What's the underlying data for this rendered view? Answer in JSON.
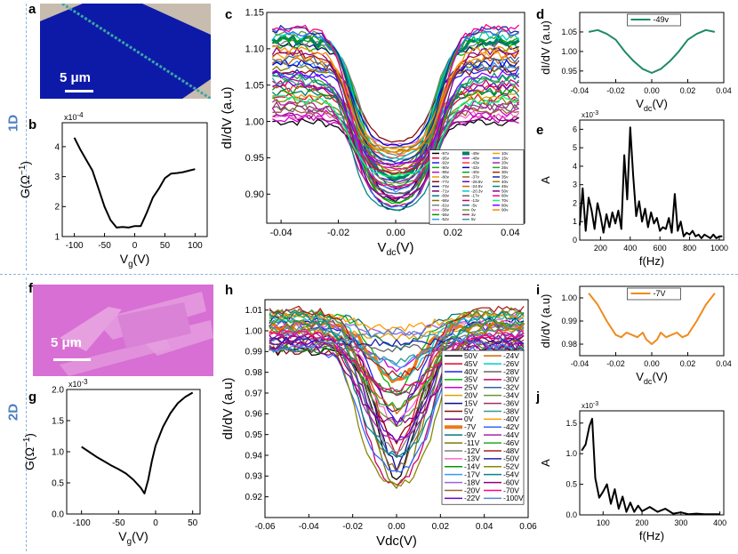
{
  "row_labels": {
    "row1": "1D",
    "row2": "2D"
  },
  "panel_labels": {
    "a": "a",
    "b": "b",
    "c": "c",
    "d": "d",
    "e": "e",
    "f": "f",
    "g": "g",
    "h": "h",
    "i": "i",
    "j": "j"
  },
  "images": {
    "a": {
      "scale_label": "5 μm",
      "bg_color": "#0d1aa8",
      "stripe_color": "#c7bcae"
    },
    "f": {
      "scale_label": "5 μm",
      "bg_color": "#d86fd4"
    }
  },
  "chart_data": [
    {
      "panel": "b",
      "type": "line",
      "xlabel": "V",
      "xlabel_sub": "g",
      "xlabel_unit": "(V)",
      "ylabel": "G(Ω",
      "ylabel_sup": "−1",
      "ylabel_close": ")",
      "exponent": "x10",
      "exponent_sup": "-4",
      "xlim": [
        -120,
        120
      ],
      "ylim": [
        1,
        4.8
      ],
      "xticks": [
        "-100",
        "-50",
        "0",
        "50",
        "100"
      ],
      "xtick_values": [
        -100,
        -50,
        0,
        50,
        100
      ],
      "yticks": [
        "1",
        "2",
        "3",
        "4"
      ],
      "ytick_values": [
        1,
        2,
        3,
        4
      ],
      "color": "#000000",
      "x": [
        -100,
        -90,
        -80,
        -70,
        -60,
        -50,
        -40,
        -30,
        -20,
        -10,
        0,
        10,
        20,
        30,
        40,
        50,
        60,
        70,
        80,
        90,
        100
      ],
      "y": [
        4.3,
        3.9,
        3.55,
        3.2,
        2.6,
        2.0,
        1.55,
        1.3,
        1.32,
        1.3,
        1.35,
        1.35,
        1.8,
        2.3,
        2.6,
        2.95,
        3.1,
        3.12,
        3.15,
        3.2,
        3.25
      ]
    },
    {
      "panel": "c",
      "type": "line",
      "xlabel": "V",
      "xlabel_sub": "dc",
      "xlabel_unit": "(V)",
      "ylabel": "dI/dV (a.u)",
      "xlim": [
        -0.045,
        0.045
      ],
      "ylim": [
        0.86,
        1.15
      ],
      "xticks": [
        "-0.04",
        "-0.02",
        "0.00",
        "0.02",
        "0.04"
      ],
      "xtick_values": [
        -0.04,
        -0.02,
        0,
        0.02,
        0.04
      ],
      "yticks": [
        "0.90",
        "0.95",
        "1.00",
        "1.05",
        "1.10",
        "1.15"
      ],
      "ytick_values": [
        0.9,
        0.95,
        1.0,
        1.05,
        1.1,
        1.15
      ],
      "legend_position": "bottom-right",
      "legend": [
        "-97v",
        "-95v",
        "-92v",
        "-90v",
        "-85v",
        "-80v",
        "-77v",
        "-74v",
        "-71v",
        "-69v",
        "-66v",
        "-61v",
        "-58v",
        "-55v",
        "-52v",
        "-49v",
        "-48v",
        "-43v",
        "-42v",
        "-40v",
        "-37v",
        "-28.8v",
        "-24.8v",
        "-20.3v",
        "-17v",
        "-13v",
        "-5v",
        "0v",
        "3v",
        "5v",
        "10v",
        "15v",
        "20v",
        "25v",
        "30v",
        "35v",
        "40v",
        "45v",
        "50v",
        "60v",
        "70v",
        "80v",
        "90v"
      ],
      "legend_colors": [
        "#000000",
        "#e8002a",
        "#1f1ff2",
        "#00b300",
        "#cc00cc",
        "#e0a000",
        "#8c0a0a",
        "#111177",
        "#7a0070",
        "#007a7a",
        "#7a7a00",
        "#808080",
        "#ff66cc",
        "#009900",
        "#3399ff",
        "#008060",
        "#cc00cc",
        "#ff3333",
        "#0000cc",
        "#00aa00",
        "#996633",
        "#6600cc",
        "#cc6600",
        "#00cccc",
        "#666666",
        "#cc0066",
        "#336699",
        "#669933",
        "#993366",
        "#339999",
        "#ff9900",
        "#3366ff",
        "#aa22aa",
        "#22aa22",
        "#aa2222",
        "#2222aa",
        "#888800",
        "#008888",
        "#880088",
        "#ff0088",
        "#00ff88",
        "#8800ff",
        "#ff8800"
      ],
      "bold_series": "-49v",
      "center_min": 0.875,
      "center_max": 0.97,
      "edge_min": 1.0,
      "edge_max": 1.13
    },
    {
      "panel": "d",
      "type": "line",
      "xlabel": "V",
      "xlabel_sub": "dc",
      "xlabel_unit": "(V)",
      "ylabel": "dI/dV (a.u)",
      "xlim": [
        -0.04,
        0.04
      ],
      "ylim": [
        0.92,
        1.1
      ],
      "xticks": [
        "-0.04",
        "-0.02",
        "0.00",
        "0.02",
        "0.04"
      ],
      "xtick_values": [
        -0.04,
        -0.02,
        0,
        0.02,
        0.04
      ],
      "yticks": [
        "0.95",
        "1.00",
        "1.05"
      ],
      "ytick_values": [
        0.95,
        1.0,
        1.05
      ],
      "series_name": "-49v",
      "color": "#1e8a64",
      "x": [
        -0.035,
        -0.03,
        -0.025,
        -0.02,
        -0.015,
        -0.01,
        -0.005,
        0,
        0.005,
        0.01,
        0.015,
        0.02,
        0.025,
        0.03,
        0.035
      ],
      "y": [
        1.05,
        1.055,
        1.045,
        1.03,
        1.0,
        0.975,
        0.955,
        0.945,
        0.955,
        0.975,
        1.0,
        1.03,
        1.045,
        1.055,
        1.05
      ]
    },
    {
      "panel": "e",
      "type": "line",
      "xlabel": "f(Hz)",
      "ylabel": "A",
      "exponent": "x10",
      "exponent_sup": "-3",
      "xlim": [
        60,
        1030
      ],
      "ylim": [
        0,
        6.5
      ],
      "xticks": [
        "200",
        "400",
        "600",
        "800",
        "1000"
      ],
      "xtick_values": [
        200,
        400,
        600,
        800,
        1000
      ],
      "yticks": [
        "0",
        "1",
        "2",
        "3",
        "4",
        "5",
        "6"
      ],
      "ytick_values": [
        0,
        1,
        2,
        3,
        4,
        5,
        6
      ],
      "color": "#000000",
      "x": [
        60,
        80,
        100,
        120,
        140,
        160,
        180,
        200,
        220,
        240,
        260,
        280,
        300,
        320,
        340,
        360,
        380,
        400,
        420,
        440,
        460,
        480,
        500,
        520,
        540,
        560,
        580,
        600,
        620,
        640,
        660,
        680,
        700,
        720,
        740,
        760,
        780,
        800,
        820,
        840,
        860,
        880,
        900,
        920,
        940,
        960,
        980,
        1000,
        1020
      ],
      "y": [
        0.8,
        2.8,
        0.5,
        2.3,
        1.6,
        0.6,
        2.0,
        1.3,
        0.4,
        1.4,
        0.7,
        1.5,
        0.9,
        1.6,
        0.6,
        4.6,
        2.2,
        6.1,
        3.5,
        1.3,
        2.1,
        1.0,
        1.7,
        0.7,
        1.5,
        0.9,
        1.2,
        0.5,
        0.7,
        0.6,
        1.2,
        0.4,
        2.5,
        0.5,
        1.0,
        0.2,
        0.4,
        0.3,
        0.5,
        0.2,
        0.3,
        0.1,
        0.3,
        0.2,
        0.1,
        0.3,
        0.1,
        0.2,
        0.2
      ]
    },
    {
      "panel": "g",
      "type": "line",
      "xlabel": "V",
      "xlabel_sub": "g",
      "xlabel_unit": "(V)",
      "ylabel": "G(Ω",
      "ylabel_sup": "−1",
      "ylabel_close": ")",
      "exponent": "x10",
      "exponent_sup": "-3",
      "xlim": [
        -120,
        60
      ],
      "ylim": [
        0,
        2
      ],
      "xticks": [
        "-100",
        "-50",
        "0",
        "50"
      ],
      "xtick_values": [
        -100,
        -50,
        0,
        50
      ],
      "yticks": [
        "0.0",
        "0.5",
        "1.0",
        "1.5",
        "2.0"
      ],
      "ytick_values": [
        0,
        0.5,
        1.0,
        1.5,
        2.0
      ],
      "color": "#000000",
      "x": [
        -100,
        -90,
        -80,
        -70,
        -60,
        -50,
        -40,
        -30,
        -20,
        -15,
        -10,
        -5,
        0,
        10,
        20,
        30,
        40,
        50
      ],
      "y": [
        1.08,
        1.0,
        0.92,
        0.85,
        0.78,
        0.72,
        0.65,
        0.55,
        0.42,
        0.33,
        0.55,
        0.85,
        1.1,
        1.4,
        1.62,
        1.78,
        1.88,
        1.95
      ]
    },
    {
      "panel": "h",
      "type": "line",
      "xlabel": "Vdc(V)",
      "ylabel": "dI/dV (a.u)",
      "xlim": [
        -0.06,
        0.06
      ],
      "ylim": [
        0.91,
        1.015
      ],
      "xticks": [
        "-0.06",
        "-0.04",
        "-0.02",
        "0.00",
        "0.02",
        "0.04",
        "0.06"
      ],
      "xtick_values": [
        -0.06,
        -0.04,
        -0.02,
        0,
        0.02,
        0.04,
        0.06
      ],
      "yticks": [
        "0.92",
        "0.93",
        "0.94",
        "0.95",
        "0.96",
        "0.97",
        "0.98",
        "0.99",
        "1.00",
        "1.01"
      ],
      "ytick_values": [
        0.92,
        0.93,
        0.94,
        0.95,
        0.96,
        0.97,
        0.98,
        0.99,
        1.0,
        1.01
      ],
      "legend_position": "bottom-right",
      "legend": [
        "50V",
        "45V",
        "40V",
        "35V",
        "25V",
        "20V",
        "15V",
        "5V",
        "0V",
        "-7V",
        "-9V",
        "-11V",
        "-12V",
        "-13V",
        "-14V",
        "-17V",
        "-18V",
        "-20V",
        "-22V",
        "-24V",
        "-26V",
        "-28V",
        "-30V",
        "-32V",
        "-34V",
        "-36V",
        "-38V",
        "-40V",
        "-42V",
        "-44V",
        "-46V",
        "-48V",
        "-50V",
        "-52V",
        "-54V",
        "-60V",
        "-70V",
        "-100V"
      ],
      "legend_colors": [
        "#000000",
        "#e8002a",
        "#1f1ff2",
        "#00b300",
        "#cc00cc",
        "#e0a000",
        "#0a0a8c",
        "#8c0a0a",
        "#7a0070",
        "#f07818",
        "#007a7a",
        "#7a7a00",
        "#808080",
        "#ff66cc",
        "#009900",
        "#3399ff",
        "#a060e0",
        "#996633",
        "#6600cc",
        "#cc6600",
        "#00cccc",
        "#666666",
        "#cc0066",
        "#336699",
        "#669933",
        "#993366",
        "#339999",
        "#ff9900",
        "#3366ff",
        "#aa22aa",
        "#22aa22",
        "#aa2222",
        "#2222aa",
        "#888800",
        "#008888",
        "#880088",
        "#ff0088",
        "#5588cc"
      ],
      "bold_series": "-7V",
      "center_min": 0.917,
      "center_max": 1.001,
      "edge_min": 0.99,
      "edge_max": 1.01
    },
    {
      "panel": "i",
      "type": "line",
      "xlabel": "V",
      "xlabel_sub": "dc",
      "xlabel_unit": "(V)",
      "ylabel": "dI/dV (a.u)",
      "xlim": [
        -0.04,
        0.04
      ],
      "ylim": [
        0.975,
        1.005
      ],
      "xticks": [
        "-0.04",
        "-0.02",
        "0.00",
        "0.02",
        "0.04"
      ],
      "xtick_values": [
        -0.04,
        -0.02,
        0,
        0.02,
        0.04
      ],
      "yticks": [
        "0.98",
        "0.99",
        "1.00"
      ],
      "ytick_values": [
        0.98,
        0.99,
        1.0
      ],
      "series_name": "-7V",
      "color": "#f08a1c",
      "x": [
        -0.035,
        -0.03,
        -0.025,
        -0.02,
        -0.017,
        -0.014,
        -0.011,
        -0.008,
        -0.005,
        -0.003,
        0,
        0.003,
        0.005,
        0.008,
        0.011,
        0.014,
        0.017,
        0.02,
        0.025,
        0.03,
        0.035
      ],
      "y": [
        1.002,
        0.997,
        0.99,
        0.984,
        0.983,
        0.985,
        0.984,
        0.983,
        0.985,
        0.982,
        0.98,
        0.982,
        0.985,
        0.983,
        0.984,
        0.985,
        0.983,
        0.984,
        0.99,
        0.997,
        1.002
      ]
    },
    {
      "panel": "j",
      "type": "line",
      "xlabel": "f(Hz)",
      "ylabel": "A",
      "exponent": "x10",
      "exponent_sup": "-3",
      "xlim": [
        40,
        410
      ],
      "ylim": [
        0,
        1.7
      ],
      "xticks": [
        "100",
        "200",
        "300",
        "400"
      ],
      "xtick_values": [
        100,
        200,
        300,
        400
      ],
      "yticks": [
        "0.0",
        "0.5",
        "1.0",
        "1.5"
      ],
      "ytick_values": [
        0,
        0.5,
        1.0,
        1.5
      ],
      "color": "#000000",
      "x": [
        45,
        55,
        65,
        72,
        80,
        90,
        100,
        110,
        120,
        130,
        140,
        150,
        160,
        170,
        180,
        190,
        200,
        220,
        240,
        260,
        280,
        300,
        320,
        340,
        360,
        380,
        400
      ],
      "y": [
        1.05,
        1.15,
        1.45,
        1.57,
        0.6,
        0.28,
        0.38,
        0.5,
        0.18,
        0.42,
        0.1,
        0.3,
        0.05,
        0.2,
        0.05,
        0.15,
        0.06,
        0.13,
        0.05,
        0.1,
        0.02,
        0.04,
        0.01,
        0.02,
        0.01,
        0.01,
        0.01
      ]
    }
  ]
}
